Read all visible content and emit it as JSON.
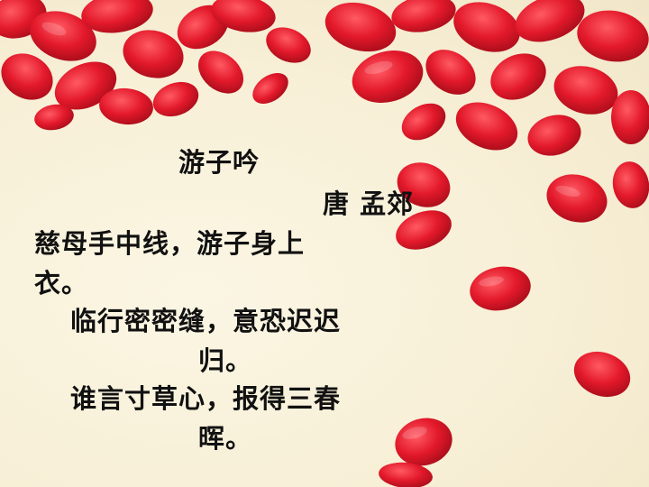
{
  "poem": {
    "title": "游子吟",
    "author": "唐 孟郊",
    "lines": [
      "慈母手中线，游子身上",
      "衣。",
      "临行密密缝，意恐迟迟",
      "归。",
      "谁言寸草心，报得三春",
      "晖。"
    ]
  },
  "colors": {
    "background": "#f8f2dc",
    "petal": "#e0182a",
    "petal_dark": "#b80f1e",
    "text": "#111111"
  }
}
